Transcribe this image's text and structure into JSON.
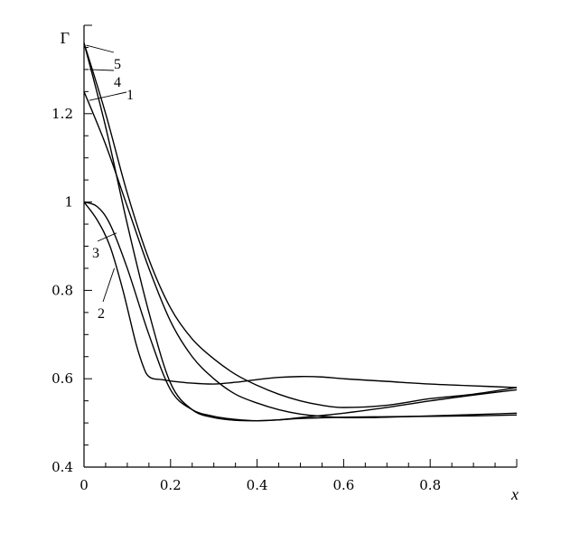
{
  "chart_data": {
    "type": "line",
    "xlabel": "x",
    "ylabel": "Γ",
    "xlim": [
      0,
      1
    ],
    "ylim": [
      0.4,
      1.4
    ],
    "grid": false,
    "xticks": [
      "0",
      "0.2",
      "0.4",
      "0.6",
      "0.8"
    ],
    "xtick_values": [
      0,
      0.2,
      0.4,
      0.6,
      0.8
    ],
    "yticks": [
      "0.4",
      "0.6",
      "0.8",
      "1",
      "1.2"
    ],
    "ytick_values": [
      0.4,
      0.6,
      0.8,
      1.0,
      1.2
    ],
    "series": [
      {
        "name": "1",
        "x": [
          0,
          0.05,
          0.1,
          0.15,
          0.2,
          0.25,
          0.3,
          0.35,
          0.4,
          0.45,
          0.5,
          0.55,
          0.6,
          0.65,
          0.7,
          0.8,
          0.9,
          1.0
        ],
        "y": [
          1.25,
          1.13,
          0.99,
          0.85,
          0.73,
          0.65,
          0.6,
          0.565,
          0.545,
          0.53,
          0.52,
          0.515,
          0.512,
          0.512,
          0.513,
          0.516,
          0.519,
          0.522
        ]
      },
      {
        "name": "2",
        "x": [
          0,
          0.03,
          0.06,
          0.09,
          0.12,
          0.14,
          0.15,
          0.16,
          0.18,
          0.2,
          0.25,
          0.3,
          0.35,
          0.4,
          0.45,
          0.5,
          0.55,
          0.6,
          0.7,
          0.8,
          0.9,
          1.0
        ],
        "y": [
          1.0,
          0.96,
          0.9,
          0.8,
          0.68,
          0.62,
          0.605,
          0.6,
          0.598,
          0.595,
          0.59,
          0.588,
          0.592,
          0.598,
          0.603,
          0.605,
          0.604,
          0.6,
          0.594,
          0.588,
          0.584,
          0.58
        ]
      },
      {
        "name": "3",
        "x": [
          0,
          0.03,
          0.06,
          0.1,
          0.15,
          0.2,
          0.25,
          0.3,
          0.35,
          0.4,
          0.45,
          0.5,
          0.6,
          0.7,
          0.8,
          0.9,
          1.0
        ],
        "y": [
          1.0,
          0.99,
          0.95,
          0.85,
          0.7,
          0.575,
          0.53,
          0.515,
          0.508,
          0.505,
          0.507,
          0.512,
          0.522,
          0.535,
          0.55,
          0.563,
          0.575
        ]
      },
      {
        "name": "4",
        "x": [
          0,
          0.05,
          0.1,
          0.15,
          0.2,
          0.25,
          0.3,
          0.35,
          0.4,
          0.45,
          0.5,
          0.55,
          0.6,
          0.7,
          0.8,
          0.9,
          1.0
        ],
        "y": [
          1.36,
          1.2,
          1.02,
          0.87,
          0.76,
          0.69,
          0.645,
          0.61,
          0.585,
          0.565,
          0.55,
          0.54,
          0.535,
          0.54,
          0.555,
          0.565,
          0.58
        ]
      },
      {
        "name": "5",
        "x": [
          0,
          0.05,
          0.1,
          0.15,
          0.2,
          0.25,
          0.3,
          0.35,
          0.4,
          0.45,
          0.5,
          0.6,
          0.7,
          0.8,
          0.9,
          1.0
        ],
        "y": [
          1.36,
          1.17,
          0.95,
          0.75,
          0.59,
          0.53,
          0.512,
          0.506,
          0.505,
          0.507,
          0.51,
          0.513,
          0.514,
          0.515,
          0.516,
          0.518
        ]
      }
    ]
  }
}
